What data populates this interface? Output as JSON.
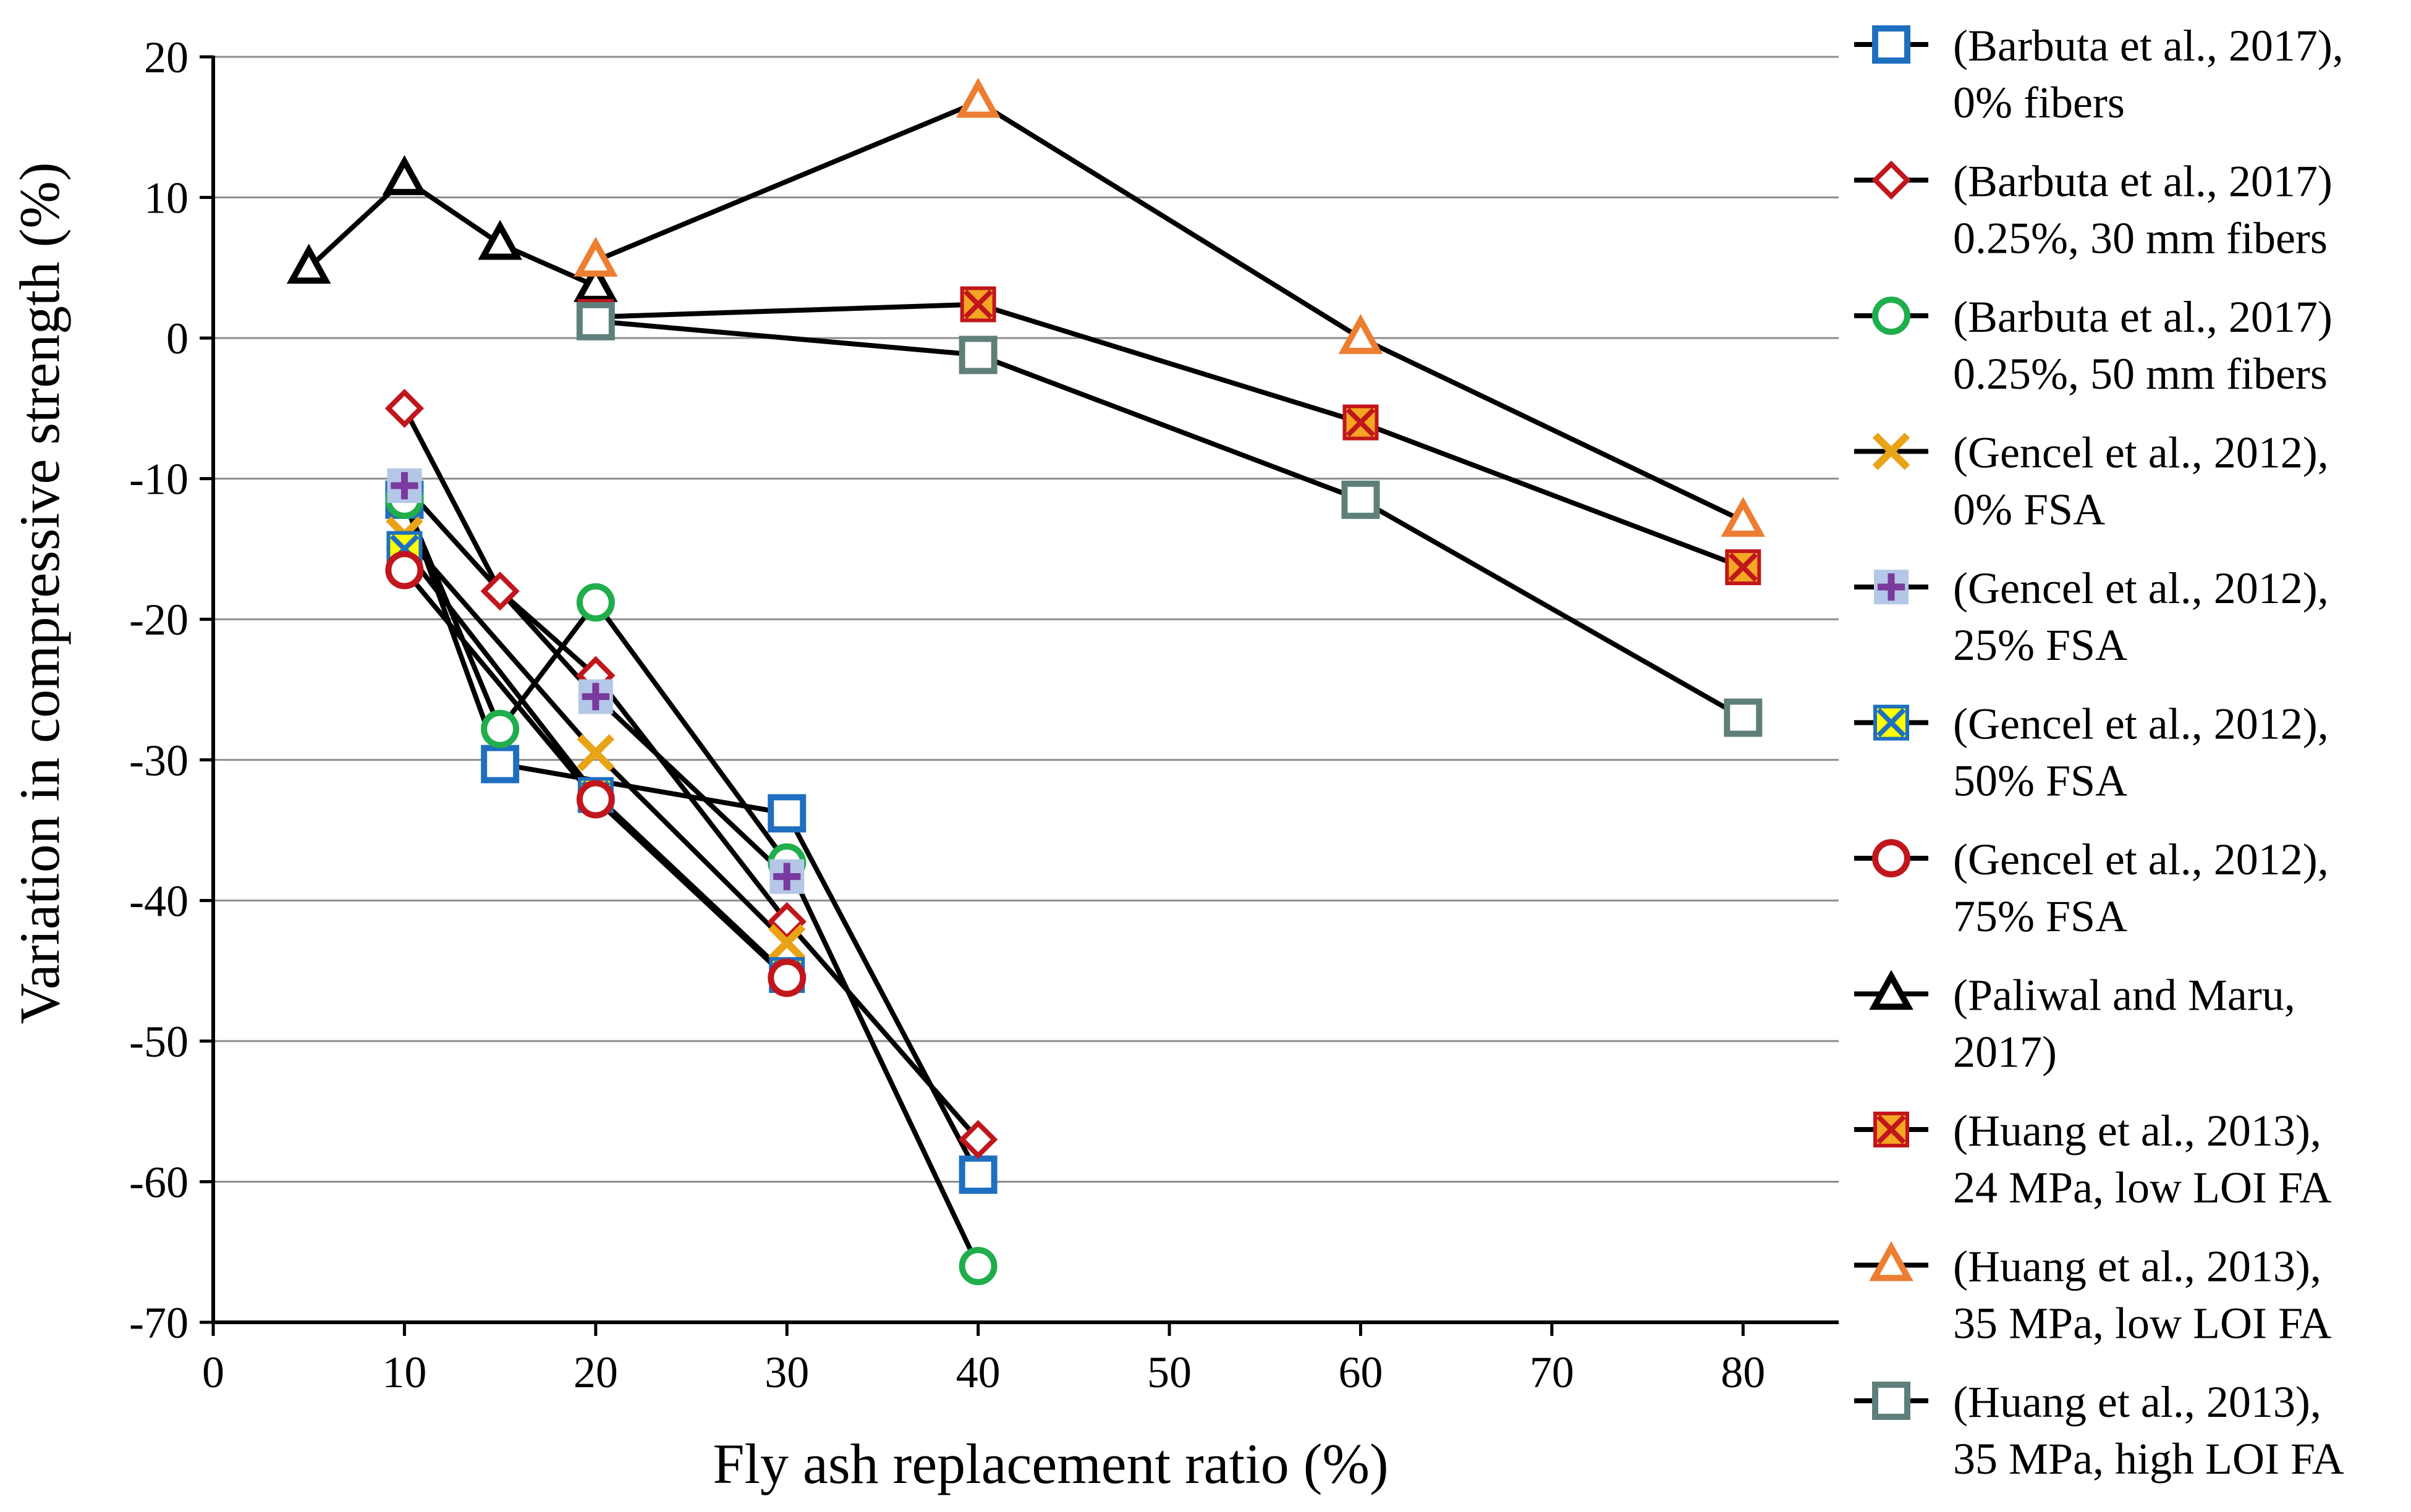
{
  "chart_data": {
    "type": "scatter",
    "xlabel": "Fly ash replacement ratio (%)",
    "ylabel": "Variation in compressive strength (%)",
    "xlim": [
      0,
      85
    ],
    "ylim": [
      -70,
      20
    ],
    "xticks": [
      0,
      10,
      20,
      30,
      40,
      50,
      60,
      70,
      80
    ],
    "yticks": [
      20,
      10,
      0,
      -10,
      -20,
      -30,
      -40,
      -50,
      -60,
      -70
    ],
    "grid": "horizontal",
    "legend_position": "right",
    "series": [
      {
        "name": [
          "(Barbuta et al., 2017),",
          "0% fibers"
        ],
        "marker": "square",
        "color": "#1f6fc0",
        "fill": "#ffffff",
        "x": [
          10,
          15,
          30,
          40
        ],
        "y": [
          -11.5,
          -30.3,
          -33.8,
          -59.5
        ]
      },
      {
        "name": [
          "(Barbuta et al., 2017)",
          "0.25%, 30 mm fibers"
        ],
        "marker": "diamond",
        "color": "#c0161c",
        "fill": "#ffffff",
        "x": [
          10,
          15,
          20,
          30,
          40
        ],
        "y": [
          -5.0,
          -18.0,
          -24.0,
          -41.5,
          -57.0
        ]
      },
      {
        "name": [
          "(Barbuta et al., 2017)",
          "0.25%, 50 mm fibers"
        ],
        "marker": "circle",
        "color": "#1fae4b",
        "fill": "#ffffff",
        "x": [
          10,
          15,
          20,
          30,
          40
        ],
        "y": [
          -11.5,
          -27.8,
          -18.8,
          -37.3,
          -66.0
        ]
      },
      {
        "name": [
          "(Gencel et al., 2012),",
          "0% FSA"
        ],
        "marker": "x",
        "color": "#e8a317",
        "fill": "none",
        "x": [
          10,
          20,
          30
        ],
        "y": [
          -14.0,
          -29.5,
          -43.0
        ]
      },
      {
        "name": [
          "(Gencel et al., 2012),",
          "25% FSA"
        ],
        "marker": "plus-square",
        "color": "#7a3a9e",
        "fill": "#b4c7e7",
        "x": [
          10,
          20,
          30
        ],
        "y": [
          -10.5,
          -25.5,
          -38.3
        ]
      },
      {
        "name": [
          "(Gencel et al., 2012),",
          "50% FSA"
        ],
        "marker": "x-square",
        "color": "#1f6fc0",
        "fill": "#ffff00",
        "x": [
          10,
          20,
          30
        ],
        "y": [
          -15.0,
          -32.5,
          -45.3
        ]
      },
      {
        "name": [
          "(Gencel et al., 2012),",
          "75% FSA"
        ],
        "marker": "circle",
        "color": "#c0161c",
        "fill": "#ffffff",
        "x": [
          10,
          20,
          30
        ],
        "y": [
          -16.5,
          -32.8,
          -45.5
        ]
      },
      {
        "name": [
          "(Paliwal and Maru,",
          "2017)"
        ],
        "marker": "triangle",
        "color": "#000000",
        "fill": "#ffffff",
        "x": [
          5,
          10,
          15,
          20
        ],
        "y": [
          5.0,
          11.3,
          6.7,
          3.7
        ]
      },
      {
        "name": [
          "(Huang et al., 2013),",
          "24 MPa, low LOI FA"
        ],
        "marker": "x-square",
        "color": "#c0161c",
        "fill": "#f5a623",
        "x": [
          20,
          40,
          60,
          80
        ],
        "y": [
          1.5,
          2.4,
          -6.0,
          -16.3
        ]
      },
      {
        "name": [
          "(Huang et al., 2013),",
          "35 MPa, low LOI FA"
        ],
        "marker": "triangle",
        "color": "#ed7d31",
        "fill": "#ffffff",
        "x": [
          20,
          40,
          60,
          80
        ],
        "y": [
          5.5,
          16.8,
          0.0,
          -13.0
        ]
      },
      {
        "name": [
          "(Huang et al., 2013),",
          "35 MPa, high LOI FA"
        ],
        "marker": "square",
        "color": "#5f7f7a",
        "fill": "#ffffff",
        "x": [
          20,
          40,
          60,
          80
        ],
        "y": [
          1.2,
          -1.2,
          -11.5,
          -27.0
        ]
      }
    ]
  }
}
